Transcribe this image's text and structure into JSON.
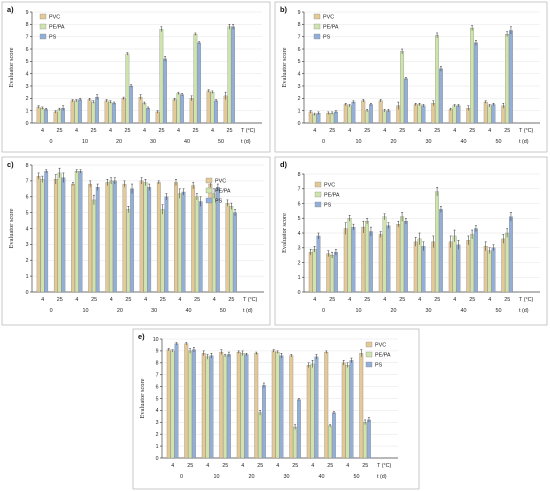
{
  "colors": {
    "PVC": "#e3c996",
    "PE/PA": "#cfe4ad",
    "PS": "#93afd8"
  },
  "chart_data": [
    {
      "id": "a",
      "type": "bar",
      "panel_label": "a)",
      "ylabel": "Evaluator score",
      "ylim": [
        0,
        9
      ],
      "yticks": [
        0,
        1,
        2,
        3,
        4,
        5,
        6,
        7,
        8,
        9
      ],
      "x_temperatures": [
        "4",
        "25",
        "4",
        "25",
        "4",
        "25",
        "4",
        "25",
        "4",
        "25",
        "4",
        "25"
      ],
      "x_times": [
        "0",
        "10",
        "20",
        "30",
        "40",
        "50"
      ],
      "temp_axis_label": "T (°C)",
      "time_axis_label": "t (d)",
      "legend_position": "top-left",
      "series": [
        {
          "name": "PVC",
          "values": [
            1.3,
            0.9,
            1.8,
            1.9,
            1.8,
            2.0,
            2.1,
            0.9,
            1.9,
            2.0,
            2.6,
            2.2
          ]
        },
        {
          "name": "PE/PA",
          "values": [
            1.2,
            1.1,
            1.8,
            1.7,
            1.7,
            5.6,
            1.6,
            7.6,
            2.4,
            7.2,
            2.5,
            7.8
          ]
        },
        {
          "name": "PS",
          "values": [
            1.1,
            1.2,
            1.9,
            2.1,
            1.6,
            3.0,
            1.2,
            5.2,
            2.3,
            6.5,
            1.8,
            7.8
          ]
        }
      ],
      "errors": [
        [
          0.1,
          0.1,
          0.1,
          0.1,
          0.1,
          0.1,
          0.2,
          0.1,
          0.1,
          0.2,
          0.1,
          0.3
        ],
        [
          0.1,
          0.1,
          0.1,
          0.1,
          0.1,
          0.1,
          0.1,
          0.2,
          0.1,
          0.1,
          0.1,
          0.2
        ],
        [
          0.1,
          0.2,
          0.1,
          0.2,
          0.1,
          0.1,
          0.1,
          0.2,
          0.1,
          0.1,
          0.1,
          0.2
        ]
      ]
    },
    {
      "id": "b",
      "type": "bar",
      "panel_label": "b)",
      "ylabel": "Evaluator score",
      "ylim": [
        0,
        9
      ],
      "yticks": [
        0,
        1,
        2,
        3,
        4,
        5,
        6,
        7,
        8,
        9
      ],
      "x_temperatures": [
        "4",
        "25",
        "4",
        "25",
        "4",
        "25",
        "4",
        "25",
        "4",
        "25",
        "4",
        "25"
      ],
      "x_times": [
        "0",
        "10",
        "20",
        "30",
        "40",
        "50"
      ],
      "temp_axis_label": "T (°C)",
      "time_axis_label": "t (d)",
      "legend_position": "top-left",
      "series": [
        {
          "name": "PVC",
          "values": [
            0.9,
            0.8,
            1.5,
            1.8,
            1.8,
            1.4,
            1.5,
            1.6,
            1.1,
            1.2,
            1.7,
            1.4
          ]
        },
        {
          "name": "PE/PA",
          "values": [
            0.7,
            0.8,
            1.4,
            1.0,
            1.0,
            5.8,
            1.5,
            7.1,
            1.4,
            7.7,
            1.4,
            7.2
          ]
        },
        {
          "name": "PS",
          "values": [
            0.8,
            0.9,
            1.7,
            1.5,
            1.0,
            3.6,
            1.4,
            4.4,
            1.4,
            6.5,
            1.5,
            7.5
          ]
        }
      ],
      "errors": [
        [
          0.1,
          0.1,
          0.1,
          0.1,
          0.1,
          0.3,
          0.1,
          0.2,
          0.1,
          0.2,
          0.1,
          0.2
        ],
        [
          0.1,
          0.1,
          0.1,
          0.1,
          0.1,
          0.2,
          0.1,
          0.2,
          0.1,
          0.2,
          0.1,
          0.2
        ],
        [
          0.1,
          0.1,
          0.1,
          0.1,
          0.1,
          0.1,
          0.1,
          0.2,
          0.1,
          0.2,
          0.1,
          0.3
        ]
      ]
    },
    {
      "id": "c",
      "type": "bar",
      "panel_label": "c)",
      "ylabel": "Evaluator score",
      "ylim": [
        0,
        8
      ],
      "yticks": [
        0,
        1,
        2,
        3,
        4,
        5,
        6,
        7,
        8
      ],
      "x_temperatures": [
        "4",
        "25",
        "4",
        "25",
        "4",
        "25",
        "4",
        "25",
        "4",
        "25",
        "4",
        "25"
      ],
      "x_times": [
        "0",
        "10",
        "20",
        "30",
        "40",
        "50"
      ],
      "temp_axis_label": "T (°C)",
      "time_axis_label": "t (d)",
      "legend_position": "top-right",
      "series": [
        {
          "name": "PVC",
          "values": [
            7.3,
            7.1,
            6.8,
            6.8,
            6.9,
            6.8,
            7.0,
            6.9,
            6.9,
            6.7,
            6.8,
            5.6
          ]
        },
        {
          "name": "PE/PA",
          "values": [
            7.1,
            7.5,
            7.6,
            5.8,
            7.0,
            5.2,
            6.9,
            5.2,
            6.2,
            6.0,
            6.2,
            5.4
          ]
        },
        {
          "name": "PS",
          "values": [
            7.6,
            7.2,
            7.6,
            6.6,
            7.0,
            6.5,
            6.6,
            6.0,
            6.3,
            5.7,
            6.6,
            5.0
          ]
        }
      ],
      "errors": [
        [
          0.2,
          0.3,
          0.1,
          0.2,
          0.2,
          0.2,
          0.2,
          0.1,
          0.2,
          0.2,
          0.2,
          0.2
        ],
        [
          0.2,
          0.3,
          0.1,
          0.3,
          0.2,
          0.2,
          0.2,
          0.3,
          0.3,
          0.2,
          0.3,
          0.2
        ],
        [
          0.1,
          0.3,
          0.1,
          0.2,
          0.2,
          0.3,
          0.2,
          0.2,
          0.2,
          0.3,
          0.2,
          0.2
        ]
      ]
    },
    {
      "id": "d",
      "type": "bar",
      "panel_label": "d)",
      "ylabel": "Evaluator score",
      "ylim": [
        0,
        8
      ],
      "yticks": [
        0,
        1,
        2,
        3,
        4,
        5,
        6,
        7,
        8
      ],
      "x_temperatures": [
        "4",
        "25",
        "4",
        "25",
        "4",
        "25",
        "4",
        "25",
        "4",
        "25",
        "4",
        "25"
      ],
      "x_times": [
        "0",
        "10",
        "20",
        "30",
        "40",
        "50"
      ],
      "temp_axis_label": "T (°C)",
      "time_axis_label": "t (d)",
      "legend_position": "top-left",
      "series": [
        {
          "name": "PVC",
          "values": [
            2.7,
            2.6,
            4.3,
            4.4,
            3.9,
            4.6,
            3.4,
            3.4,
            3.4,
            3.5,
            3.1,
            3.6
          ]
        },
        {
          "name": "PE/PA",
          "values": [
            2.9,
            2.5,
            5.0,
            4.8,
            5.1,
            5.1,
            3.6,
            6.8,
            3.8,
            3.9,
            2.8,
            4.0
          ]
        },
        {
          "name": "PS",
          "values": [
            3.8,
            2.7,
            4.4,
            4.1,
            4.5,
            4.8,
            3.1,
            5.6,
            3.2,
            4.3,
            3.0,
            5.1
          ]
        }
      ],
      "errors": [
        [
          0.2,
          0.2,
          0.4,
          0.4,
          0.2,
          0.2,
          0.3,
          0.4,
          0.4,
          0.3,
          0.3,
          0.3
        ],
        [
          0.2,
          0.2,
          0.2,
          0.2,
          0.2,
          0.3,
          0.4,
          0.3,
          0.4,
          0.3,
          0.2,
          0.3
        ],
        [
          0.2,
          0.2,
          0.2,
          0.3,
          0.2,
          0.2,
          0.3,
          0.2,
          0.3,
          0.2,
          0.2,
          0.3
        ]
      ]
    },
    {
      "id": "e",
      "type": "bar",
      "panel_label": "e)",
      "ylabel": "Evaluator score",
      "ylim": [
        0,
        10
      ],
      "yticks": [
        0,
        1,
        2,
        3,
        4,
        5,
        6,
        7,
        8,
        9,
        10
      ],
      "x_temperatures": [
        "4",
        "25",
        "4",
        "25",
        "4",
        "25",
        "4",
        "25",
        "4",
        "25",
        "4",
        "25"
      ],
      "x_times": [
        "0",
        "10",
        "20",
        "30",
        "40",
        "50"
      ],
      "temp_axis_label": "T (°C)",
      "time_axis_label": "t (d)",
      "legend_position": "top-right",
      "series": [
        {
          "name": "PVC",
          "values": [
            9.1,
            9.6,
            8.8,
            8.9,
            8.9,
            8.8,
            9.0,
            8.6,
            7.8,
            8.9,
            8.0,
            8.8
          ]
        },
        {
          "name": "PE/PA",
          "values": [
            9.0,
            9.0,
            8.5,
            8.6,
            8.8,
            3.8,
            8.9,
            2.6,
            7.9,
            2.7,
            7.8,
            3.0
          ]
        },
        {
          "name": "PS",
          "values": [
            9.6,
            9.1,
            8.6,
            8.7,
            8.7,
            6.1,
            8.6,
            4.9,
            8.5,
            3.8,
            8.2,
            3.2
          ]
        }
      ],
      "errors": [
        [
          0.1,
          0.1,
          0.2,
          0.2,
          0.1,
          0.1,
          0.1,
          0.1,
          0.2,
          0.1,
          0.2,
          0.3
        ],
        [
          0.1,
          0.2,
          0.2,
          0.1,
          0.2,
          0.2,
          0.1,
          0.2,
          0.3,
          0.1,
          0.2,
          0.2
        ],
        [
          0.1,
          0.2,
          0.2,
          0.2,
          0.1,
          0.2,
          0.2,
          0.1,
          0.2,
          0.1,
          0.2,
          0.2
        ]
      ]
    }
  ]
}
